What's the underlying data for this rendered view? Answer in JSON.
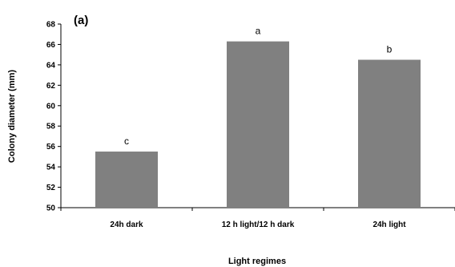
{
  "chart_data": {
    "type": "bar",
    "panel_label": "(a)",
    "categories": [
      "24h dark",
      "12 h light/12 h dark",
      "24h light"
    ],
    "values": [
      55.5,
      66.3,
      64.5
    ],
    "significance_letters": [
      "c",
      "a",
      "b"
    ],
    "xlabel": "Light regimes",
    "ylabel": "Colony diameter  (mm)",
    "ylim": [
      50,
      68
    ],
    "yticks": [
      50,
      52,
      54,
      56,
      58,
      60,
      62,
      64,
      66,
      68
    ],
    "grid": false,
    "bar_color": "#808080"
  }
}
